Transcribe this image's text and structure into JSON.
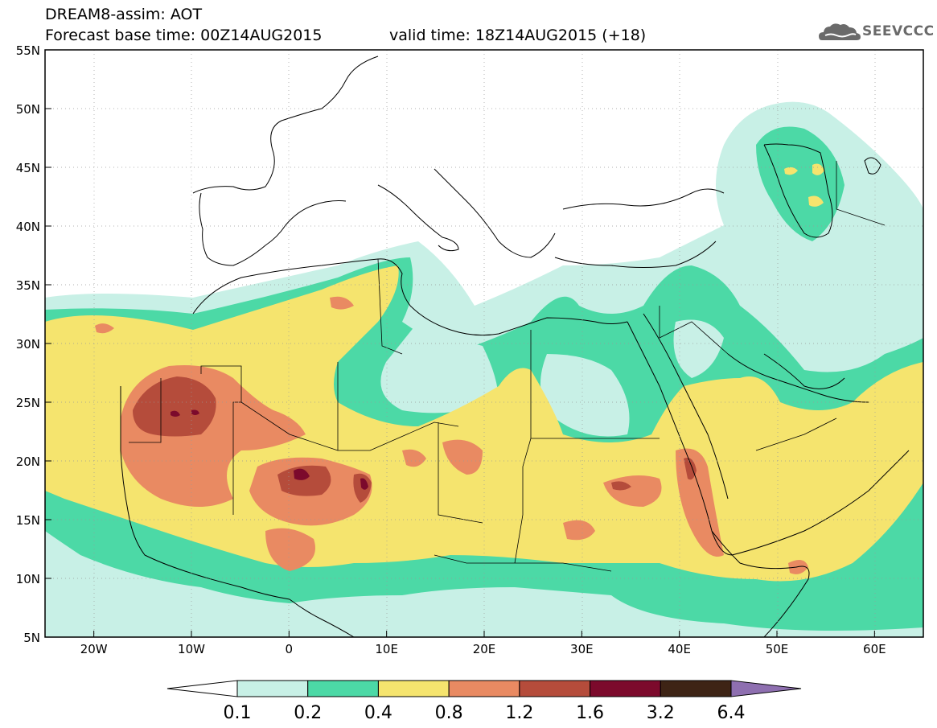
{
  "header": {
    "title": "DREAM8-assim: AOT",
    "base_time": "Forecast base time: 00Z14AUG2015",
    "valid_time": "valid time: 18Z14AUG2015 (+18)"
  },
  "logo": {
    "text": "SEEVCCC",
    "icon": "cloud-logo-icon"
  },
  "axes": {
    "lat_labels": [
      "55N",
      "50N",
      "45N",
      "40N",
      "35N",
      "30N",
      "25N",
      "20N",
      "15N",
      "10N",
      "5N"
    ],
    "lon_labels": [
      "20W",
      "10W",
      "0",
      "10E",
      "20E",
      "30E",
      "40E",
      "50E",
      "60E"
    ],
    "lat_range": [
      5,
      55
    ],
    "lon_range": [
      -25,
      65
    ],
    "grid": "dotted"
  },
  "colorbar": {
    "thresholds": [
      "0.1",
      "0.2",
      "0.4",
      "0.8",
      "1.2",
      "1.6",
      "3.2",
      "6.4"
    ],
    "colors": [
      "#ffffff",
      "#c8f0e6",
      "#4cd9a6",
      "#f5e46e",
      "#e98a62",
      "#b54c3b",
      "#7c0a2c",
      "#3e2415",
      "#8e6fb0"
    ]
  }
}
